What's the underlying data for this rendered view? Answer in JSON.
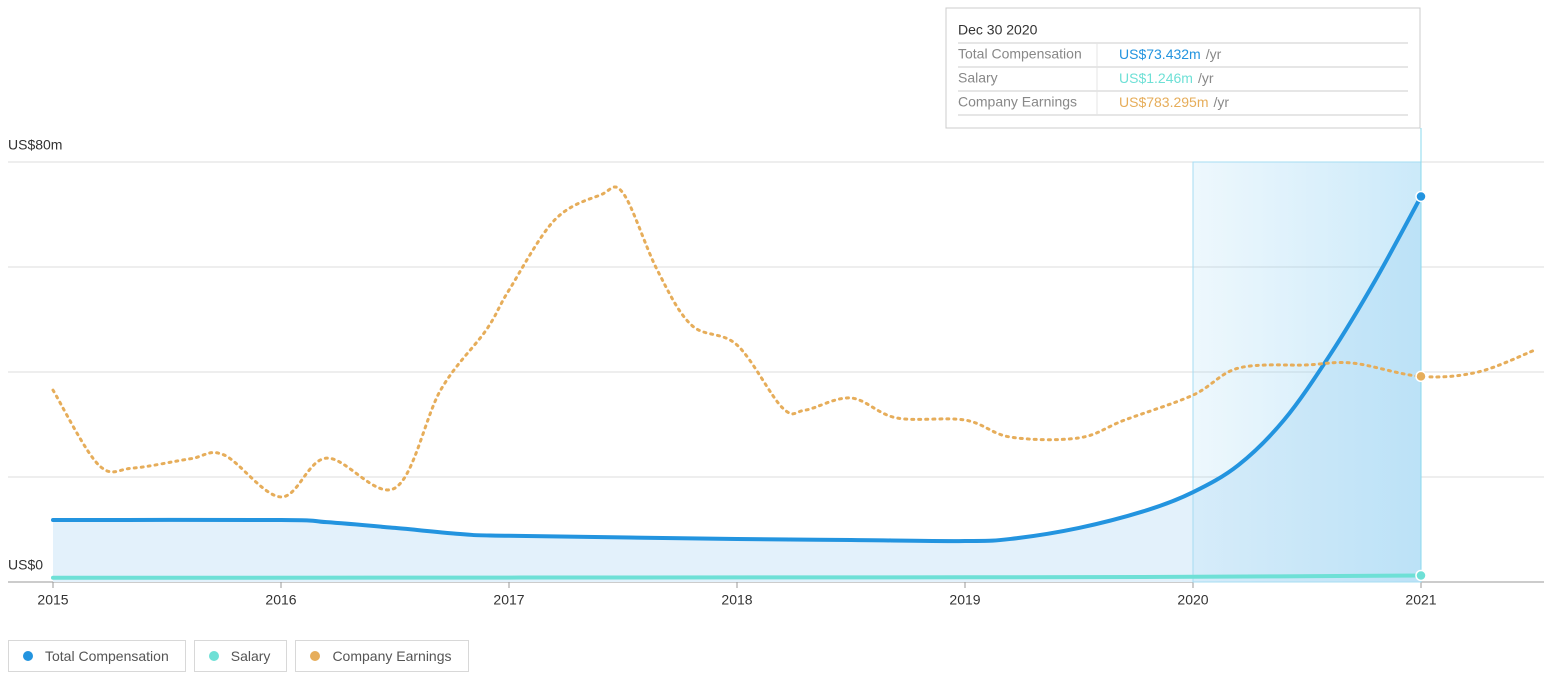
{
  "chart_data": {
    "type": "line",
    "xlim": [
      2014.8,
      2021.55
    ],
    "xticks": [
      2015,
      2016,
      2017,
      2018,
      2019,
      2020,
      2021
    ],
    "ylim": [
      0,
      80
    ],
    "yticks": [
      {
        "value": 0,
        "label": "US$0"
      },
      {
        "value": 20,
        "label": null
      },
      {
        "value": 40,
        "label": null
      },
      {
        "value": 60,
        "label": null
      },
      {
        "value": 80,
        "label": "US$80m"
      }
    ],
    "y2lim": [
      0,
      1600
    ],
    "grid": true,
    "highlight_range": [
      2020,
      2021
    ],
    "series": [
      {
        "name": "Total Compensation",
        "color": "#2394df",
        "area": true,
        "x": [
          2015,
          2016,
          2016.2,
          2016.5,
          2016.8,
          2017,
          2018,
          2018.5,
          2019,
          2019.2,
          2019.5,
          2019.8,
          2020,
          2020.2,
          2020.4,
          2020.6,
          2020.8,
          2021
        ],
        "values": [
          11.8,
          11.8,
          11.4,
          10.3,
          9.1,
          8.8,
          8.2,
          8.0,
          7.8,
          8.2,
          10.3,
          13.7,
          17.1,
          22.3,
          30.9,
          43.2,
          57.5,
          73.432
        ]
      },
      {
        "name": "Salary",
        "color": "#6ee0d6",
        "x": [
          2015,
          2019,
          2020,
          2021
        ],
        "values": [
          0.8,
          0.9,
          1.0,
          1.246
        ]
      },
      {
        "name": "Company Earnings",
        "color": "#e6ad5a",
        "axis": "y2",
        "dashed": true,
        "x": [
          2015,
          2015.2,
          2015.35,
          2015.6,
          2015.75,
          2016,
          2016.2,
          2016.5,
          2016.7,
          2016.9,
          2017,
          2017.2,
          2017.4,
          2017.5,
          2017.65,
          2017.8,
          2018,
          2018.2,
          2018.3,
          2018.5,
          2018.7,
          2019,
          2019.2,
          2019.5,
          2019.7,
          2020,
          2020.2,
          2020.5,
          2020.7,
          2021,
          2021.25,
          2021.5
        ],
        "values": [
          731,
          446,
          434,
          469,
          484,
          324,
          472,
          358,
          731,
          960,
          1112,
          1379,
          1474,
          1482,
          1189,
          979,
          903,
          663,
          655,
          701,
          625,
          617,
          552,
          549,
          617,
          712,
          815,
          827,
          834,
          783.295,
          800,
          884
        ]
      }
    ],
    "tooltip": {
      "date": "Dec 30 2020",
      "rows": [
        {
          "label": "Total Compensation",
          "value": "US$73.432m",
          "unit": "/yr"
        },
        {
          "label": "Salary",
          "value": "US$1.246m",
          "unit": "/yr"
        },
        {
          "label": "Company Earnings",
          "value": "US$783.295m",
          "unit": "/yr"
        }
      ]
    }
  }
}
